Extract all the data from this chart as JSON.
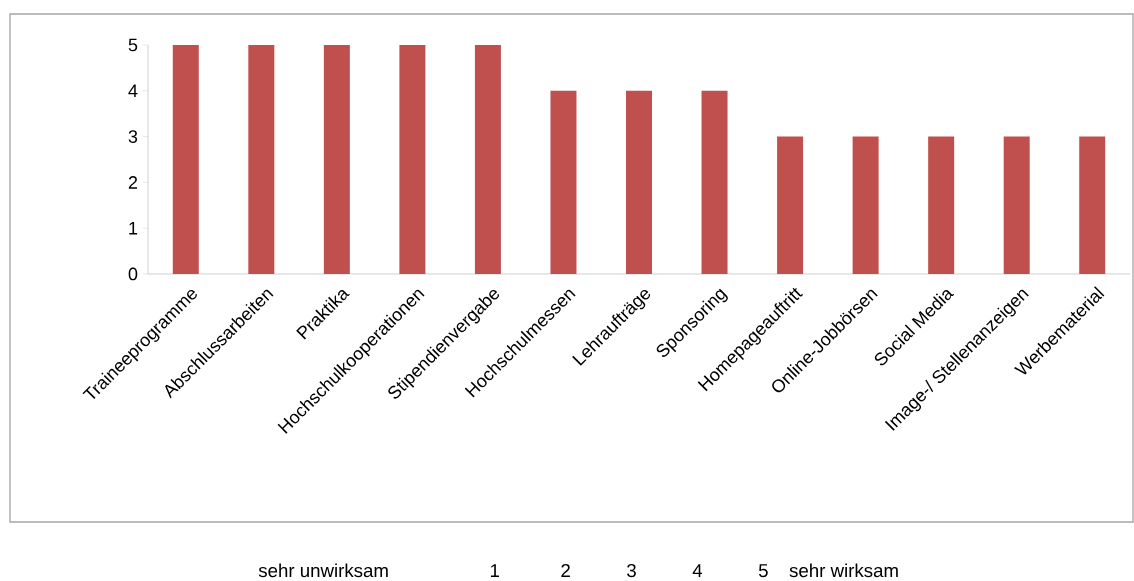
{
  "chart_data": {
    "type": "bar",
    "categories": [
      "Traineeprogramme",
      "Abschlussarbeiten",
      "Praktika",
      "Hochschulkooperationen",
      "Stipendienvergabe",
      "Hochschulmessen",
      "Lehraufträge",
      "Sponsoring",
      "Homepageauftritt",
      "Online-Jobbörsen",
      "Social Media",
      "Image-/ Stellenanzeigen",
      "Werbematerial"
    ],
    "values": [
      5,
      5,
      5,
      5,
      5,
      4,
      4,
      4,
      3,
      3,
      3,
      3,
      3
    ],
    "color": "#c0504d",
    "ylim": [
      0,
      5
    ],
    "yticks": [
      0,
      1,
      2,
      3,
      4,
      5
    ],
    "grid": false,
    "annotations": [
      "sehr unwirksam",
      "1",
      "2",
      "3",
      "4",
      "5",
      "sehr wirksam"
    ]
  }
}
